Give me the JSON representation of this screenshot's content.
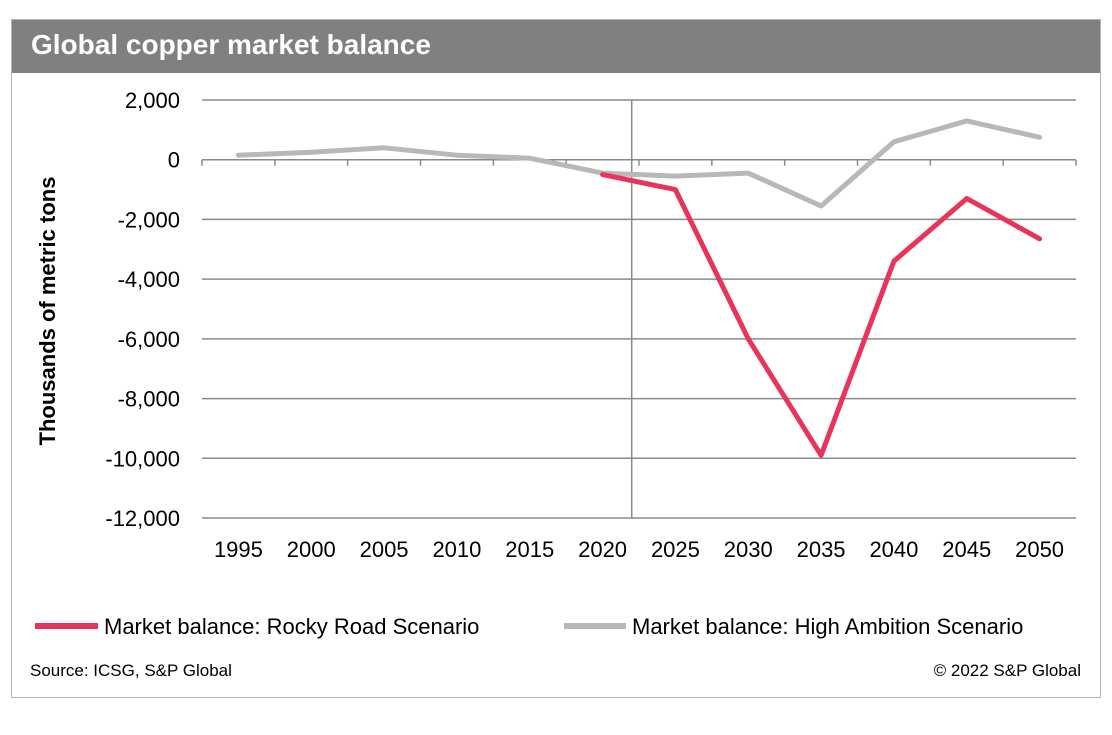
{
  "title": "Global copper market balance",
  "footer": {
    "source": "Source: ICSG, S&P Global",
    "copyright": "© 2022 S&P Global"
  },
  "chart_data": {
    "type": "line",
    "ylabel": "Thousands of metric tons",
    "xlabel": "",
    "ylim": [
      -12000,
      2000
    ],
    "yticks": [
      2000,
      0,
      -2000,
      -4000,
      -6000,
      -8000,
      -10000,
      -12000
    ],
    "ytick_labels": [
      "2,000",
      "0",
      "-2,000",
      "-4,000",
      "-6,000",
      "-8,000",
      "-10,000",
      "-12,000"
    ],
    "x": [
      1995,
      2000,
      2005,
      2010,
      2015,
      2020,
      2025,
      2030,
      2035,
      2040,
      2045,
      2050
    ],
    "x_labels": [
      "1995",
      "2000",
      "2005",
      "2010",
      "2015",
      "2020",
      "2025",
      "2030",
      "2035",
      "2040",
      "2045",
      "2050"
    ],
    "vertical_marker": 2022,
    "grid": "horizontal",
    "legend": "bottom",
    "series": [
      {
        "name": "Market balance: Rocky Road Scenario",
        "color": "#e8345a",
        "points": [
          [
            2020,
            -500
          ],
          [
            2022,
            -700
          ],
          [
            2025,
            -1000
          ],
          [
            2030,
            -6000
          ],
          [
            2035,
            -9900
          ],
          [
            2040,
            -3400
          ],
          [
            2045,
            -1300
          ],
          [
            2050,
            -2650
          ]
        ]
      },
      {
        "name": "Market balance: High Ambition Scenario",
        "color": "#b8b8b8",
        "points": [
          [
            1995,
            150
          ],
          [
            2000,
            250
          ],
          [
            2005,
            400
          ],
          [
            2010,
            150
          ],
          [
            2015,
            50
          ],
          [
            2020,
            -450
          ],
          [
            2025,
            -550
          ],
          [
            2030,
            -450
          ],
          [
            2035,
            -1550
          ],
          [
            2040,
            600
          ],
          [
            2045,
            1300
          ],
          [
            2050,
            750
          ]
        ]
      }
    ]
  }
}
